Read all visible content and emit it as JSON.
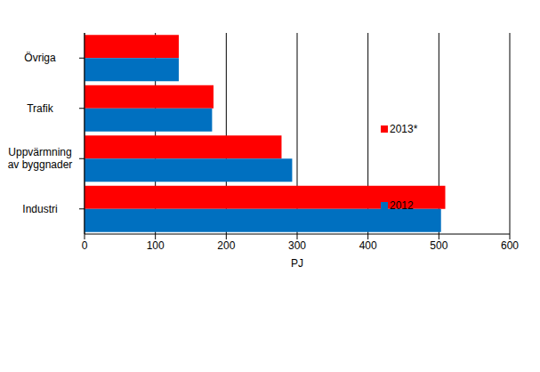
{
  "chart_data": {
    "type": "bar",
    "orientation": "horizontal",
    "categories": [
      "Övriga",
      "Trafik",
      "Uppvärmning av byggnader",
      "Industri"
    ],
    "series": [
      {
        "name": "2013*",
        "color": "#ff0000",
        "values": [
          133,
          182,
          278,
          509
        ]
      },
      {
        "name": "2012",
        "color": "#0070c0",
        "values": [
          133,
          180,
          293,
          503
        ]
      }
    ],
    "x_label": "PJ",
    "xlim": [
      0,
      600
    ],
    "xticks": [
      0,
      100,
      200,
      300,
      400,
      500,
      600
    ],
    "grid": true,
    "legend": "right"
  }
}
